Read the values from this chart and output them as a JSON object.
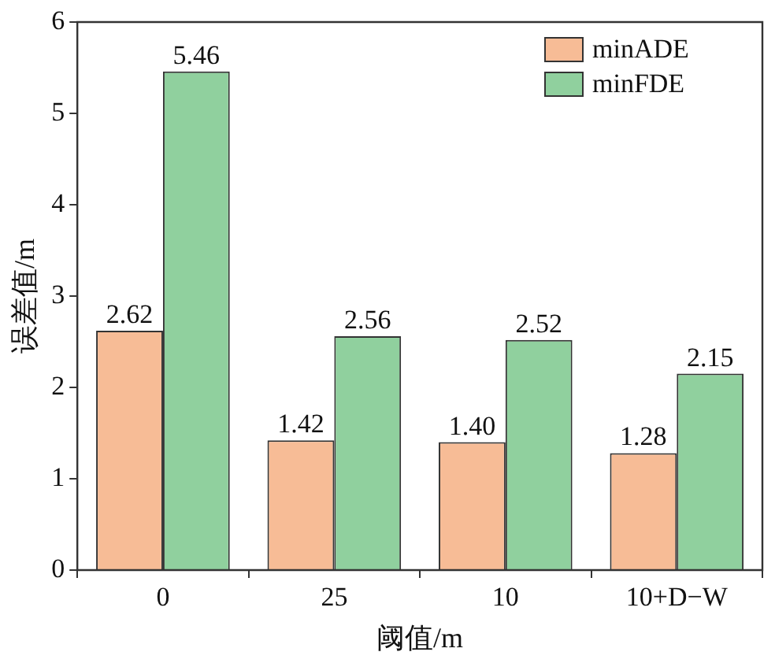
{
  "chart_data": {
    "type": "bar",
    "xlabel": "阈值/m",
    "ylabel": "误差值/m",
    "categories": [
      "0",
      "25",
      "10",
      "10+D−W"
    ],
    "series": [
      {
        "name": "minADE",
        "color": "#f7bc96",
        "values": [
          2.62,
          1.42,
          1.4,
          1.28
        ],
        "value_labels": [
          "2.62",
          "1.42",
          "1.40",
          "1.28"
        ]
      },
      {
        "name": "minFDE",
        "color": "#90d09e",
        "values": [
          5.46,
          2.56,
          2.52,
          2.15
        ],
        "value_labels": [
          "5.46",
          "2.56",
          "2.52",
          "2.15"
        ]
      }
    ],
    "ylim": [
      0,
      6
    ],
    "yticks": [
      0,
      1,
      2,
      3,
      4,
      5,
      6
    ],
    "grid": false,
    "legend": "top right"
  }
}
